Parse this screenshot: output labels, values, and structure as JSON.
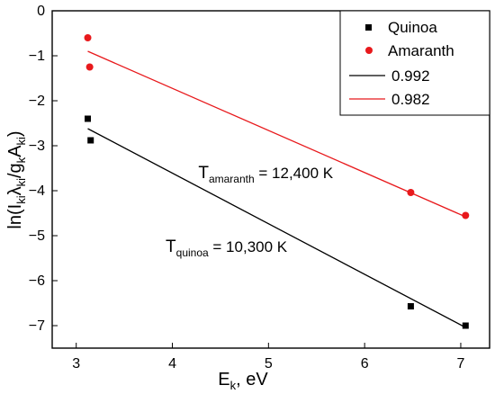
{
  "chart_data": {
    "type": "scatter",
    "xlabel_main": "E",
    "xlabel_sub": "k",
    "xlabel_rest": ", eV",
    "ylabel_parts": [
      {
        "t": "ln(I",
        "sub": false
      },
      {
        "t": "ki",
        "sub": true
      },
      {
        "t": "λ",
        "sub": false
      },
      {
        "t": "ki",
        "sub": true
      },
      {
        "t": "/g",
        "sub": false
      },
      {
        "t": "k",
        "sub": true
      },
      {
        "t": "A",
        "sub": false
      },
      {
        "t": "ki",
        "sub": true
      },
      {
        "t": ")",
        "sub": false
      }
    ],
    "xlim": [
      2.75,
      7.3
    ],
    "ylim": [
      -7.5,
      0
    ],
    "x_ticks": [
      3,
      4,
      5,
      6,
      7
    ],
    "y_ticks": [
      0,
      -1,
      -2,
      -3,
      -4,
      -5,
      -6,
      -7
    ],
    "x_tick_labels": [
      "3",
      "4",
      "5",
      "6",
      "7"
    ],
    "y_tick_labels": [
      "0",
      "−1",
      "−2",
      "−3",
      "−4",
      "−5",
      "−6",
      "−7"
    ],
    "series": [
      {
        "name": "Quinoa",
        "marker": "square",
        "color": "#000000",
        "points": [
          [
            3.12,
            -2.4
          ],
          [
            3.15,
            -2.88
          ],
          [
            6.48,
            -6.57
          ],
          [
            7.05,
            -7.0
          ]
        ]
      },
      {
        "name": "Amaranth",
        "marker": "circle",
        "color": "#e8191c",
        "points": [
          [
            3.12,
            -0.6
          ],
          [
            3.14,
            -1.25
          ],
          [
            6.48,
            -4.04
          ],
          [
            7.05,
            -4.55
          ]
        ]
      }
    ],
    "fits": [
      {
        "name": "0.992",
        "color": "#000000",
        "x": [
          3.12,
          7.05
        ],
        "y": [
          -2.62,
          -7.04
        ]
      },
      {
        "name": "0.982",
        "color": "#e8191c",
        "x": [
          3.12,
          7.05
        ],
        "y": [
          -0.9,
          -4.58
        ]
      }
    ],
    "annotations": [
      {
        "main": "T",
        "sub": "amaranth",
        "rest": " = 12,400  K",
        "x": 4.27,
        "y": -3.72
      },
      {
        "main": "T",
        "sub": "quinoa",
        "rest": " = 10,300  K",
        "x": 3.93,
        "y": -5.36
      }
    ],
    "legend_position": "top-right"
  }
}
